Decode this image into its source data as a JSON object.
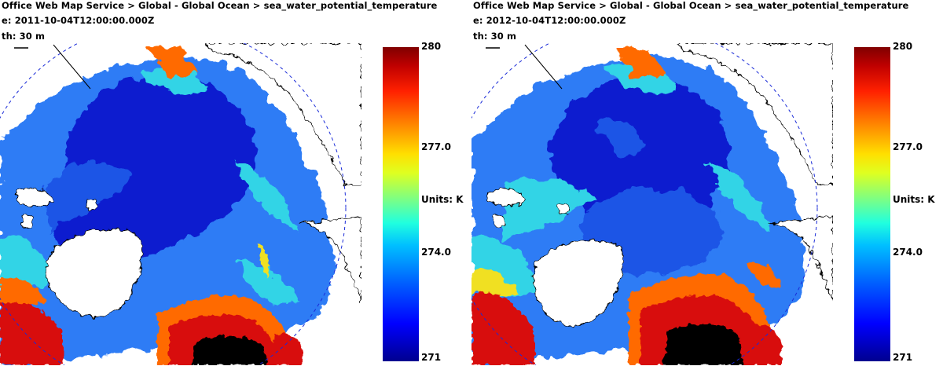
{
  "panels": [
    {
      "breadcrumb": "Office Web Map Service > Global - Global Ocean > sea_water_potential_temperature",
      "time_label": "e: 2011-10-04T12:00:00.000Z",
      "depth_label": "th: 30 m",
      "colorbar": {
        "max": "280",
        "mid_high": "277.0",
        "units": "Units: K",
        "mid_low": "274.0",
        "min": "271"
      }
    },
    {
      "breadcrumb": "Office Web Map Service > Global - Global Ocean > sea_water_potential_temperature",
      "time_label": "e: 2012-10-04T12:00:00.000Z",
      "depth_label": "th: 30 m",
      "colorbar": {
        "max": "280",
        "mid_high": "277.0",
        "units": "Units: K",
        "mid_low": "274.0",
        "min": "271"
      }
    }
  ],
  "colors": {
    "cold": "#0a1fcf",
    "cool": "#2f7cf5",
    "mild": "#33d4e6",
    "warm": "#f0e020",
    "hot": "#ff6a00",
    "hotter": "#d81010",
    "land": "#ffffff",
    "mask": "#000000",
    "graticule": "#1a2bd8"
  }
}
